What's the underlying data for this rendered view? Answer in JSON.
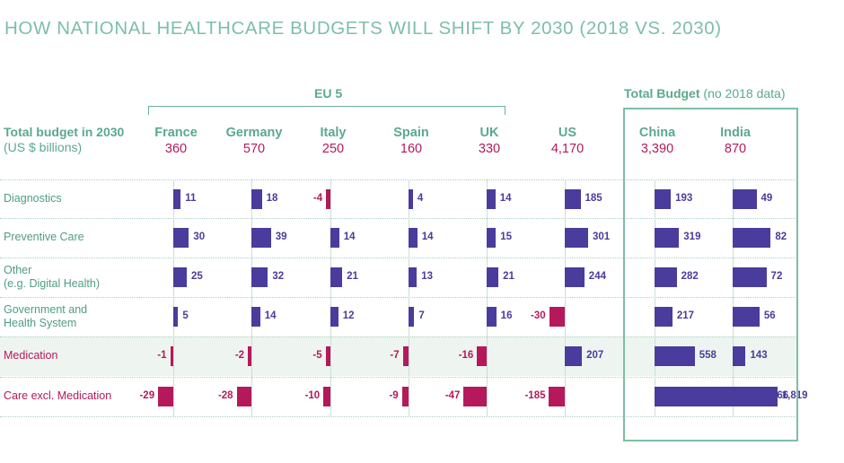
{
  "title": "HOW NATIONAL HEALTHCARE BUDGETS WILL SHIFT BY 2030 (2018 VS. 2030)",
  "group_eu5": "EU 5",
  "group_total": {
    "label": "Total Budget",
    "note": "(no 2018 data)"
  },
  "row_header": {
    "line1": "Total budget in 2030",
    "line2": "(US $ billions)"
  },
  "colors": {
    "positive": "#4a3c9c",
    "negative": "#b5195b",
    "accent": "#5aa98c"
  },
  "chart_data": {
    "type": "bar",
    "title": "HOW NATIONAL HEALTHCARE BUDGETS WILL SHIFT BY 2030 (2018 VS. 2030)",
    "countries": [
      {
        "name": "France",
        "budget": "360"
      },
      {
        "name": "Germany",
        "budget": "570"
      },
      {
        "name": "Italy",
        "budget": "250"
      },
      {
        "name": "Spain",
        "budget": "160"
      },
      {
        "name": "UK",
        "budget": "330"
      },
      {
        "name": "US",
        "budget": "4,170"
      },
      {
        "name": "China",
        "budget": "3,390"
      },
      {
        "name": "India",
        "budget": "870"
      }
    ],
    "categories": [
      {
        "label": [
          "Diagnostics"
        ],
        "color": "green",
        "values": [
          11,
          18,
          -4,
          4,
          14,
          185,
          193,
          49
        ]
      },
      {
        "label": [
          "Preventive Care"
        ],
        "color": "green",
        "values": [
          30,
          39,
          14,
          14,
          15,
          301,
          319,
          82
        ]
      },
      {
        "label": [
          "Other",
          "(e.g. Digital Health)"
        ],
        "color": "green",
        "values": [
          25,
          32,
          21,
          13,
          21,
          244,
          282,
          72
        ]
      },
      {
        "label": [
          "Government and",
          "Health System"
        ],
        "color": "green",
        "values": [
          5,
          14,
          12,
          7,
          16,
          -30,
          217,
          56
        ]
      },
      {
        "label": [
          "Medication"
        ],
        "color": "red",
        "highlight": true,
        "values": [
          -1,
          -2,
          -5,
          -7,
          -16,
          207,
          558,
          143
        ]
      },
      {
        "label": [
          "Care excl. Medication"
        ],
        "color": "red",
        "values": [
          -29,
          -28,
          -10,
          -9,
          -47,
          -185,
          1819,
          466
        ]
      }
    ]
  }
}
